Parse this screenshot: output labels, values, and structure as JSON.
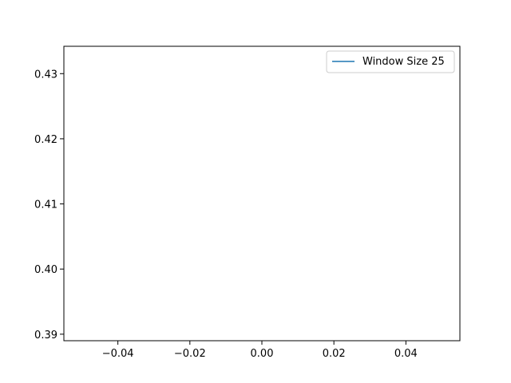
{
  "chart_data": {
    "type": "line",
    "title": "",
    "xlabel": "",
    "ylabel": "",
    "xlim": [
      -0.055,
      0.055
    ],
    "ylim": [
      0.389,
      0.4342
    ],
    "x_ticks": [
      -0.04,
      -0.02,
      0.0,
      0.02,
      0.04
    ],
    "x_tick_labels": [
      "−0.04",
      "−0.02",
      "0.00",
      "0.02",
      "0.04"
    ],
    "y_ticks": [
      0.39,
      0.4,
      0.41,
      0.42,
      0.43
    ],
    "y_tick_labels": [
      "0.39",
      "0.40",
      "0.41",
      "0.42",
      "0.43"
    ],
    "grid": false,
    "legend_position": "top-right",
    "series": [
      {
        "name": "Window Size 25",
        "color": "#1f77b4",
        "x": [],
        "y": []
      }
    ]
  }
}
